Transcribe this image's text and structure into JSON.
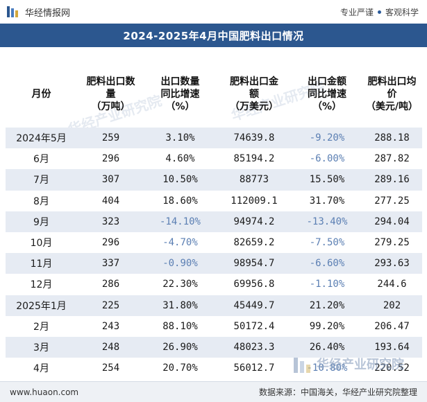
{
  "header": {
    "site_name": "华经情报网",
    "slogan_left": "专业严谨",
    "slogan_right": "客观科学"
  },
  "title": "2024-2025年4月中国肥料出口情况",
  "table": {
    "columns": [
      [
        "月份"
      ],
      [
        "肥料出口数",
        "量",
        "（万吨）"
      ],
      [
        "出口数量",
        "同比增速",
        "（%）"
      ],
      [
        "肥料出口金",
        "额",
        "（万美元）"
      ],
      [
        "出口金额",
        "同比增速",
        "（%）"
      ],
      [
        "肥料出口均",
        "价",
        "（美元/吨）"
      ]
    ],
    "rows": [
      {
        "month": "2024年5月",
        "qty": "259",
        "qty_yoy": "3.10%",
        "amt": "74639.8",
        "amt_yoy": "-9.20%",
        "price": "288.18"
      },
      {
        "month": "6月",
        "qty": "296",
        "qty_yoy": "4.60%",
        "amt": "85194.2",
        "amt_yoy": "-6.00%",
        "price": "287.82"
      },
      {
        "month": "7月",
        "qty": "307",
        "qty_yoy": "10.50%",
        "amt": "88773",
        "amt_yoy": "15.50%",
        "price": "289.16"
      },
      {
        "month": "8月",
        "qty": "404",
        "qty_yoy": "18.60%",
        "amt": "112009.1",
        "amt_yoy": "31.70%",
        "price": "277.25"
      },
      {
        "month": "9月",
        "qty": "323",
        "qty_yoy": "-14.10%",
        "amt": "94974.2",
        "amt_yoy": "-13.40%",
        "price": "294.04"
      },
      {
        "month": "10月",
        "qty": "296",
        "qty_yoy": "-4.70%",
        "amt": "82659.2",
        "amt_yoy": "-7.50%",
        "price": "279.25"
      },
      {
        "month": "11月",
        "qty": "337",
        "qty_yoy": "-0.90%",
        "amt": "98954.7",
        "amt_yoy": "-6.60%",
        "price": "293.63"
      },
      {
        "month": "12月",
        "qty": "286",
        "qty_yoy": "22.30%",
        "amt": "69956.8",
        "amt_yoy": "-1.10%",
        "price": "244.6"
      },
      {
        "month": "2025年1月",
        "qty": "225",
        "qty_yoy": "31.80%",
        "amt": "45449.7",
        "amt_yoy": "21.20%",
        "price": "202"
      },
      {
        "month": "2月",
        "qty": "243",
        "qty_yoy": "88.10%",
        "amt": "50172.4",
        "amt_yoy": "99.20%",
        "price": "206.47"
      },
      {
        "month": "3月",
        "qty": "248",
        "qty_yoy": "26.90%",
        "amt": "48023.3",
        "amt_yoy": "26.40%",
        "price": "193.64"
      },
      {
        "month": "4月",
        "qty": "254",
        "qty_yoy": "20.70%",
        "amt": "56012.7",
        "amt_yoy": "-10.80%",
        "price": "220.52"
      }
    ]
  },
  "footer": {
    "website": "www.huaon.com",
    "source": "数据来源：中国海关，华经产业研究院整理"
  },
  "watermark": {
    "text": "华经产业研究院",
    "corner_text": "华经产业研究院"
  },
  "colors": {
    "title_bar": "#2c578f",
    "stripe": "#e6ebf3",
    "negative_text": "#5b7fb3"
  }
}
